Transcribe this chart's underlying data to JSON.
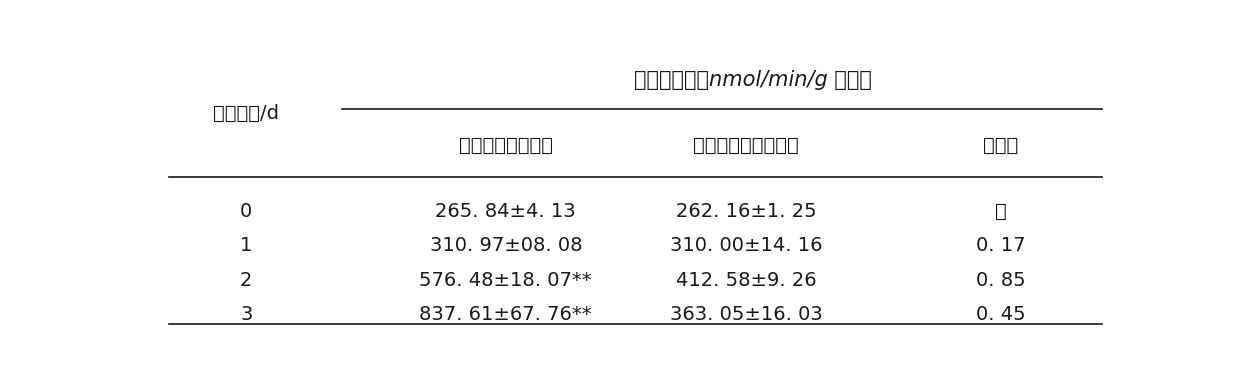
{
  "title": "过氧化氢酶（nmol/min/g 鲜重）",
  "col0_header": "接种时间/d",
  "col_headers": [
    "接种杨树腐烂病菌",
    "未接种杨树腐烂病菌",
    "增长率"
  ],
  "rows": [
    [
      "0",
      "265. 84±4. 13",
      "262. 16±1. 25",
      "－"
    ],
    [
      "1",
      "310. 97±08. 08",
      "310. 00±14. 16",
      "0. 17"
    ],
    [
      "2",
      "576. 48±18. 07**",
      "412. 58±9. 26",
      "0. 85"
    ],
    [
      "3",
      "837. 61±67. 76**",
      "363. 05±16. 03",
      "0. 45"
    ]
  ],
  "bg_color": "#ffffff",
  "text_color": "#1a1a1a",
  "font_size": 14,
  "title_font_size": 15
}
